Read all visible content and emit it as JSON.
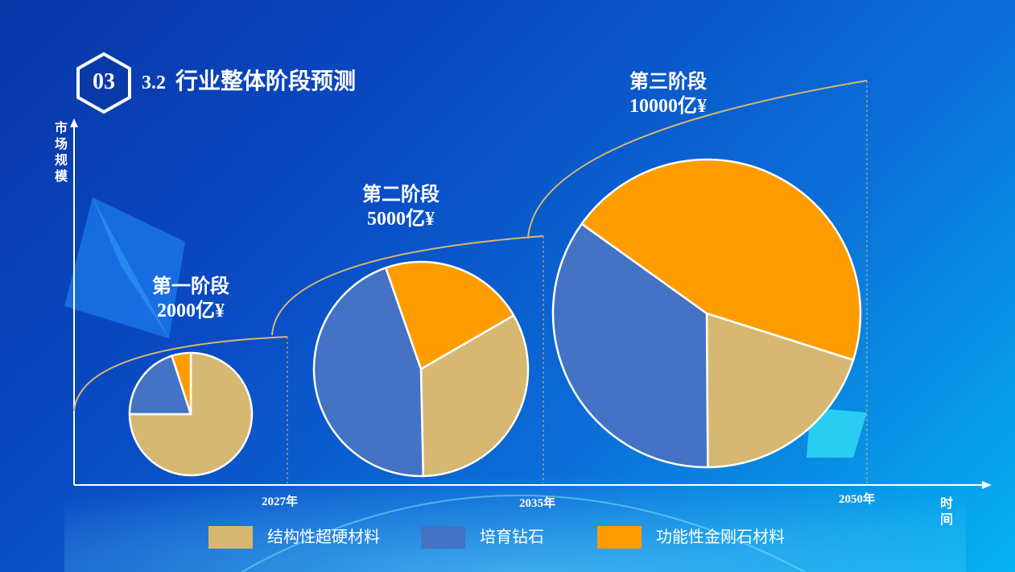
{
  "header": {
    "badge": "03",
    "section_number": "3.2",
    "title": "行业整体阶段预测"
  },
  "chart_data": {
    "type": "pie",
    "title": "行业整体阶段预测",
    "ylabel": "市场规模",
    "xlabel": "时间",
    "x_ticks": [
      "2027年",
      "2035年",
      "2050年"
    ],
    "categories": [
      "结构性超硬材料",
      "培育钻石",
      "功能性金刚石材料"
    ],
    "colors": [
      "#d6b872",
      "#4472c4",
      "#ff9c00"
    ],
    "legend_position": "bottom",
    "pies": [
      {
        "name": "第一阶段",
        "value_label": "2000亿¥",
        "market_size": 2000,
        "values": [
          75,
          20,
          5
        ]
      },
      {
        "name": "第二阶段",
        "value_label": "5000亿¥",
        "market_size": 5000,
        "values": [
          33,
          45,
          22
        ]
      },
      {
        "name": "第三阶段",
        "value_label": "10000亿¥",
        "market_size": 10000,
        "values": [
          20,
          35,
          45
        ]
      }
    ]
  }
}
